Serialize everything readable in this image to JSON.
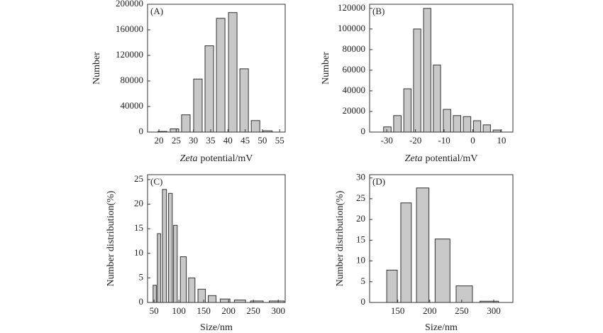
{
  "chart_data": [
    {
      "type": "bar",
      "panel": "(A)",
      "xlabel": {
        "italic": "Zeta",
        "rest": "potential/mV"
      },
      "ylabel": "Number",
      "x": [
        21,
        24.5,
        27.8,
        31.3,
        34.6,
        37.9,
        41.4,
        44.7,
        48,
        51.5
      ],
      "values": [
        1000,
        5000,
        27000,
        83000,
        135000,
        178000,
        187000,
        99000,
        18000,
        2000
      ],
      "xlim": [
        16.7,
        56.6
      ],
      "ylim": [
        0,
        200000
      ],
      "xticks": [
        20,
        25,
        30,
        35,
        40,
        45,
        50,
        55
      ],
      "yticks": [
        0,
        40000,
        80000,
        120000,
        160000,
        200000
      ],
      "color": "#c8c8c8"
    },
    {
      "type": "bar",
      "panel": "(B)",
      "xlabel": {
        "italic": "Zeta",
        "rest": "potential/mV"
      },
      "ylabel": "Number",
      "x": [
        -29.8,
        -26.3,
        -22.8,
        -19.4,
        -15.9,
        -12.5,
        -9,
        -5.5,
        -2,
        1.5,
        4.9,
        8.4
      ],
      "values": [
        5000,
        16000,
        42000,
        100000,
        120000,
        65000,
        22000,
        16000,
        15000,
        11000,
        7000,
        2000
      ],
      "xlim": [
        -36,
        14
      ],
      "ylim": [
        0,
        124000
      ],
      "xticks": [
        -30,
        -20,
        -10,
        0,
        10
      ],
      "yticks": [
        0,
        20000,
        40000,
        60000,
        80000,
        100000,
        120000
      ],
      "color": "#c8c8c8"
    },
    {
      "type": "bar",
      "panel": "(C)",
      "xlabel": {
        "rest": "Size/nm"
      },
      "ylabel": "Number distribution(%)",
      "x": [
        51.4,
        60,
        71,
        83,
        93,
        109,
        126,
        146,
        167,
        193,
        223,
        257,
        297
      ],
      "values": [
        3.5,
        14,
        23,
        22.2,
        15.7,
        9.3,
        5,
        2.7,
        1.4,
        0.7,
        0.5,
        0.3,
        0.3
      ],
      "xlim": [
        37,
        314
      ],
      "ylim": [
        0,
        26
      ],
      "xticks": [
        50,
        100,
        150,
        200,
        250,
        300
      ],
      "yticks": [
        0,
        5,
        10,
        15,
        20,
        25
      ],
      "color": "#c8c8c8"
    },
    {
      "type": "bar",
      "panel": "(D)",
      "xlabel": {
        "rest": "Size/nm"
      },
      "ylabel": "Number distribution(%)",
      "x": [
        141,
        163,
        189,
        220,
        254,
        293
      ],
      "values": [
        7.8,
        24,
        27.6,
        15.3,
        4,
        0.3
      ],
      "xlim": [
        106,
        330
      ],
      "ylim": [
        0,
        30.8
      ],
      "xticks": [
        150,
        200,
        250,
        300
      ],
      "yticks": [
        0,
        5,
        10,
        15,
        20,
        25,
        30
      ],
      "color": "#c8c8c8"
    }
  ]
}
